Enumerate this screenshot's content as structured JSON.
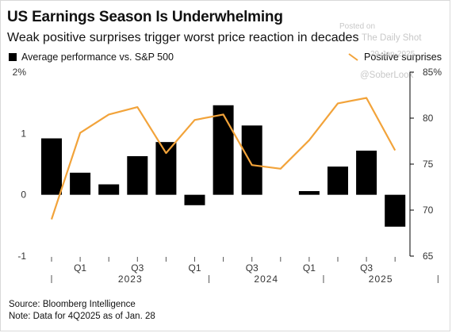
{
  "header": {
    "title": "US Earnings Season Is Underwhelming",
    "subtitle": "Weak positive surprises trigger worst price reaction in decades"
  },
  "watermark": {
    "line1": "Posted on",
    "line2": "The Daily Shot",
    "line3": "29-Jan-2025",
    "line4": "@SoberLook"
  },
  "chart_data": {
    "type": "bar",
    "categories": [
      "2022 Q4",
      "2023 Q1",
      "2023 Q2",
      "2023 Q3",
      "2023 Q4",
      "2024 Q1",
      "2024 Q2",
      "2024 Q3",
      "2024 Q4",
      "2025 Q1",
      "2025 Q2",
      "2025 Q3",
      "2025 Q4"
    ],
    "series": [
      {
        "name": "Average performance vs. S&P 500",
        "type": "bar",
        "axis": "left",
        "color": "#000000",
        "values": [
          0.92,
          0.36,
          0.17,
          0.63,
          0.86,
          -0.17,
          1.46,
          1.13,
          null,
          0.06,
          0.46,
          0.72,
          -0.52
        ]
      },
      {
        "name": "Positive surprises",
        "type": "line",
        "axis": "right",
        "color": "#f2a33a",
        "values": [
          69.0,
          78.4,
          80.4,
          81.2,
          76.2,
          79.8,
          80.4,
          74.9,
          74.5,
          77.6,
          81.6,
          82.2,
          76.5
        ]
      }
    ],
    "y_left": {
      "ylim": [
        -1,
        2
      ],
      "ticks": [
        -1,
        0,
        1,
        2
      ],
      "tick_labels": [
        "-1",
        "0",
        "1",
        "2%"
      ]
    },
    "y_right": {
      "ylim": [
        65,
        85
      ],
      "ticks": [
        65,
        70,
        75,
        80,
        85
      ],
      "tick_labels": [
        "65",
        "70",
        "75",
        "80",
        "85%"
      ]
    },
    "x_quarter_labels": [
      "",
      "Q1",
      "",
      "Q3",
      "",
      "Q1",
      "",
      "Q3",
      "",
      "Q1",
      "",
      "Q3",
      ""
    ],
    "x_year_labels": [
      "2023",
      "2024",
      "2025"
    ],
    "legend": [
      {
        "label": "Average performance vs. S&P 500",
        "marker": "square",
        "placement": "top-left"
      },
      {
        "label": "Positive surprises",
        "marker": "line",
        "placement": "top-right"
      }
    ],
    "grid": false
  },
  "footer": {
    "source": "Source: Bloomberg Intelligence",
    "note": "Note: Data for 4Q2025 as of Jan. 28"
  }
}
